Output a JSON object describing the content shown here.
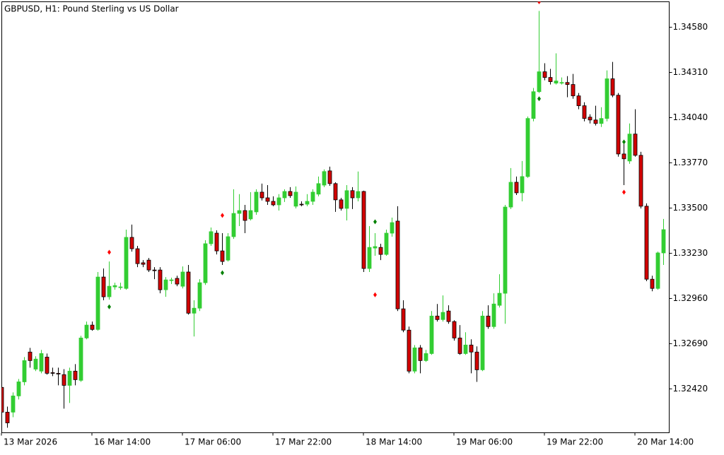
{
  "chart_data": {
    "type": "candlestick",
    "title": "GBPUSD, H1:  Pound Sterling vs US Dollar",
    "x": [
      "13 Mar 2026",
      null,
      null,
      null,
      null,
      null,
      null,
      null,
      null,
      null,
      null,
      null,
      null,
      null,
      null,
      null,
      "16 Mar 14:00",
      null,
      null,
      null,
      null,
      null,
      null,
      null,
      null,
      null,
      null,
      null,
      null,
      null,
      null,
      null,
      "17 Mar 06:00",
      null,
      null,
      null,
      null,
      null,
      null,
      null,
      null,
      null,
      null,
      null,
      null,
      null,
      null,
      null,
      "17 Mar 22:00",
      null,
      null,
      null,
      null,
      null,
      null,
      null,
      null,
      null,
      null,
      null,
      null,
      null,
      null,
      null,
      "18 Mar 14:00",
      null,
      null,
      null,
      null,
      null,
      null,
      null,
      null,
      null,
      null,
      null,
      null,
      null,
      null,
      null,
      "19 Mar 06:00",
      null,
      null,
      null,
      null,
      null,
      null,
      null,
      null,
      null,
      null,
      null,
      null,
      null,
      null,
      null,
      "19 Mar 22:00",
      null,
      null,
      null,
      null,
      null,
      null,
      null,
      null,
      null,
      null,
      null,
      null,
      null,
      null,
      null,
      "20 Mar 14:00",
      null,
      null,
      null,
      null,
      null
    ],
    "open": [
      1.32429,
      1.32281,
      1.32281,
      1.32378,
      1.32462,
      1.3264,
      1.32538,
      1.32526,
      1.3261,
      1.32517,
      1.32513,
      1.32505,
      1.32441,
      1.32526,
      1.32471,
      1.32724,
      1.32801,
      1.32775,
      1.33088,
      1.3297,
      1.33029,
      1.33025,
      1.3302,
      1.33325,
      1.33257,
      1.33173,
      1.33189,
      1.3313,
      1.3313,
      1.33012,
      1.33067,
      1.3308,
      1.33033,
      1.33118,
      1.32872,
      1.32902,
      1.33054,
      1.33287,
      1.3335,
      1.33244,
      1.33189,
      1.33329,
      1.33468,
      1.33485,
      1.33435,
      1.33477,
      1.33595,
      1.33561,
      1.3354,
      1.33519,
      1.33561,
      1.33599,
      1.33511,
      1.33523,
      1.33523,
      1.3354,
      1.33583,
      1.33637,
      1.33722,
      1.33646,
      1.33549,
      1.33498,
      1.33604,
      1.33561,
      1.33599,
      1.33139,
      1.33261,
      1.33265,
      1.33223,
      1.3335,
      1.33422,
      1.32898,
      1.32771,
      1.32526,
      1.32665,
      1.32589,
      1.32631,
      1.32855,
      1.32834,
      1.32885,
      1.32822,
      1.32724,
      1.32631,
      1.32682,
      1.3264,
      1.32534,
      1.32855,
      1.32792,
      1.32919,
      1.32991,
      1.33506,
      1.33654,
      1.33591,
      1.33688,
      1.34035,
      1.34195,
      1.34314,
      1.3428,
      1.34246,
      1.3425,
      1.3425,
      1.34238,
      1.3417,
      1.34111,
      1.34043,
      1.34026,
      1.34005,
      1.34035,
      1.34272,
      1.34174,
      1.33823,
      1.33781,
      1.33942,
      1.33815,
      1.33511,
      1.33075,
      1.3302,
      1.33232
    ],
    "high": [
      1.32441,
      1.32314,
      1.32399,
      1.32479,
      1.3261,
      1.32665,
      1.32615,
      1.32653,
      1.32631,
      1.32547,
      1.32547,
      1.32538,
      1.32547,
      1.32568,
      1.32737,
      1.32822,
      1.32822,
      1.33118,
      1.33139,
      1.33181,
      1.33054,
      1.33054,
      1.33371,
      1.33401,
      1.33274,
      1.33189,
      1.33202,
      1.33147,
      1.33147,
      1.33088,
      1.33084,
      1.33096,
      1.33151,
      1.3316,
      1.32949,
      1.33075,
      1.33308,
      1.33384,
      1.33367,
      1.3335,
      1.3335,
      1.33612,
      1.33583,
      1.33519,
      1.33595,
      1.33612,
      1.33646,
      1.33637,
      1.3357,
      1.33583,
      1.33612,
      1.33625,
      1.33629,
      1.3354,
      1.33583,
      1.33612,
      1.33688,
      1.33731,
      1.33747,
      1.33654,
      1.33561,
      1.33637,
      1.33625,
      1.33718,
      1.33604,
      1.33392,
      1.3335,
      1.33287,
      1.33371,
      1.33443,
      1.33511,
      1.32949,
      1.32792,
      1.32682,
      1.32682,
      1.32653,
      1.32885,
      1.32927,
      1.32978,
      1.32919,
      1.3283,
      1.32801,
      1.32758,
      1.32716,
      1.32674,
      1.32885,
      1.32919,
      1.32991,
      1.33105,
      1.33519,
      1.33739,
      1.33688,
      1.33781,
      1.34047,
      1.34217,
      1.34677,
      1.34365,
      1.34331,
      1.34424,
      1.3428,
      1.34288,
      1.34301,
      1.34187,
      1.34132,
      1.3406,
      1.34111,
      1.34102,
      1.34322,
      1.34373,
      1.34187,
      1.339,
      1.34005,
      1.3409,
      1.33836,
      1.33528,
      1.33096,
      1.3324,
      1.33435
    ],
    "low": [
      1.32251,
      1.32188,
      1.32251,
      1.32357,
      1.32441,
      1.32547,
      1.32526,
      1.32513,
      1.32505,
      1.32496,
      1.32441,
      1.32302,
      1.32336,
      1.32441,
      1.32462,
      1.32716,
      1.32767,
      1.32767,
      1.32949,
      1.32953,
      1.33012,
      1.33012,
      1.33012,
      1.3324,
      1.33147,
      1.33147,
      1.33118,
      1.33075,
      1.32991,
      1.3297,
      1.33046,
      1.33033,
      1.3302,
      1.32864,
      1.32733,
      1.32885,
      1.33041,
      1.33274,
      1.33223,
      1.3316,
      1.33181,
      1.33316,
      1.33392,
      1.3335,
      1.33426,
      1.3346,
      1.33545,
      1.33519,
      1.33511,
      1.33485,
      1.33536,
      1.33561,
      1.33498,
      1.33511,
      1.33511,
      1.33519,
      1.3357,
      1.33625,
      1.33633,
      1.33477,
      1.33485,
      1.33426,
      1.33494,
      1.3354,
      1.33118,
      1.33118,
      1.33215,
      1.33189,
      1.33215,
      1.33329,
      1.32885,
      1.32758,
      1.32513,
      1.32513,
      1.32513,
      1.32581,
      1.32623,
      1.32822,
      1.32822,
      1.32809,
      1.32708,
      1.32623,
      1.32623,
      1.32513,
      1.32462,
      1.32526,
      1.32779,
      1.32779,
      1.32906,
      1.32809,
      1.33494,
      1.33578,
      1.3354,
      1.3368,
      1.34018,
      1.34187,
      1.34263,
      1.34238,
      1.34238,
      1.34238,
      1.34162,
      1.34153,
      1.3409,
      1.34018,
      1.34005,
      1.33993,
      1.33984,
      1.34018,
      1.34162,
      1.33807,
      1.33637,
      1.33764,
      1.33807,
      1.33498,
      1.33063,
      1.33003,
      1.33012,
      1.3316
    ],
    "close": [
      1.32281,
      1.32217,
      1.32378,
      1.32462,
      1.32589,
      1.32589,
      1.32598,
      1.32631,
      1.32513,
      1.32513,
      1.32509,
      1.32441,
      1.32526,
      1.32475,
      1.32724,
      1.32801,
      1.32775,
      1.33088,
      1.3297,
      1.33033,
      1.33037,
      1.33029,
      1.33325,
      1.33257,
      1.33168,
      1.33164,
      1.3313,
      1.33126,
      1.33012,
      1.33071,
      1.33071,
      1.33046,
      1.33118,
      1.32872,
      1.32902,
      1.33054,
      1.33287,
      1.33359,
      1.33244,
      1.33181,
      1.33329,
      1.33468,
      1.33485,
      1.33426,
      1.33485,
      1.33595,
      1.33561,
      1.3354,
      1.33519,
      1.33561,
      1.33599,
      1.33574,
      1.33595,
      1.33519,
      1.3354,
      1.33595,
      1.33646,
      1.33718,
      1.33646,
      1.33549,
      1.33498,
      1.33604,
      1.33561,
      1.33599,
      1.33139,
      1.33265,
      1.3327,
      1.33223,
      1.3335,
      1.33413,
      1.32898,
      1.32771,
      1.32526,
      1.32665,
      1.32589,
      1.32631,
      1.32855,
      1.32834,
      1.32877,
      1.32822,
      1.32724,
      1.32631,
      1.32682,
      1.3264,
      1.32534,
      1.32855,
      1.32792,
      1.32927,
      1.32991,
      1.33506,
      1.33654,
      1.33591,
      1.33688,
      1.34035,
      1.34195,
      1.34314,
      1.3428,
      1.34255,
      1.34259,
      1.3425,
      1.34238,
      1.3417,
      1.34111,
      1.34035,
      1.34026,
      1.34005,
      1.34035,
      1.34272,
      1.34174,
      1.33823,
      1.33794,
      1.33942,
      1.33815,
      1.33511,
      1.33075,
      1.3302,
      1.33232,
      1.33371
    ],
    "up_color": "#32cd32",
    "down_color": "#d20000",
    "markers": [
      {
        "index": 19,
        "price": 1.33236,
        "color": "#ff0000"
      },
      {
        "index": 39,
        "price": 1.33456,
        "color": "#ff0000"
      },
      {
        "index": 66,
        "price": 1.32982,
        "color": "#ff0000"
      },
      {
        "index": 95,
        "price": 1.34732,
        "color": "#ff0000"
      },
      {
        "index": 110,
        "price": 1.33595,
        "color": "#ff0000"
      },
      {
        "index": 19,
        "price": 1.3291,
        "color": "#008000"
      },
      {
        "index": 39,
        "price": 1.33113,
        "color": "#008000"
      },
      {
        "index": 66,
        "price": 1.33418,
        "color": "#008000"
      },
      {
        "index": 95,
        "price": 1.34153,
        "color": "#008000"
      },
      {
        "index": 110,
        "price": 1.33895,
        "color": "#008000"
      }
    ],
    "ylim": [
      1.32158,
      1.34732
    ],
    "yticks": [
      {
        "value": 1.3458,
        "label": "1.34580"
      },
      {
        "value": 1.3431,
        "label": "1.34310"
      },
      {
        "value": 1.3404,
        "label": "1.34040"
      },
      {
        "value": 1.3377,
        "label": "1.33770"
      },
      {
        "value": 1.335,
        "label": "1.33500"
      },
      {
        "value": 1.3323,
        "label": "1.33230"
      },
      {
        "value": 1.3296,
        "label": "1.32960"
      },
      {
        "value": 1.3269,
        "label": "1.32690"
      },
      {
        "value": 1.3242,
        "label": "1.32420"
      }
    ],
    "grid": false
  }
}
